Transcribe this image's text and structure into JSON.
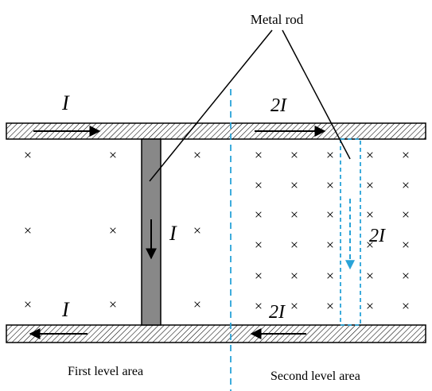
{
  "labels": {
    "metal_rod": "Metal rod",
    "first_area": "First level area",
    "second_area": "Second level area"
  },
  "currents": {
    "top_left": "I",
    "top_right": "2I",
    "rod_left": "I",
    "rod_right": "2I",
    "bottom_left": "I",
    "bottom_right": "2I"
  },
  "field_symbol": "×",
  "colors": {
    "stroke": "#000000",
    "rail_fill": "#ffffff",
    "rod_fill": "#888888",
    "dashed_blue": "#29a3d8"
  }
}
